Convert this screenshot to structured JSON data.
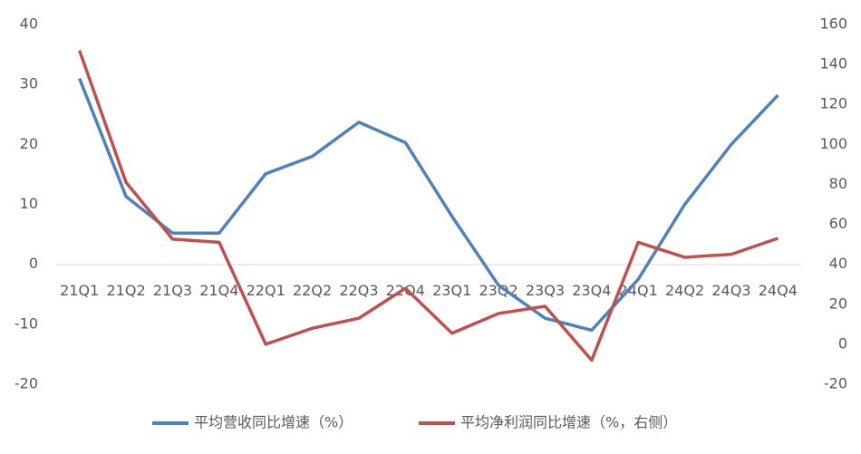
{
  "chart_data": {
    "type": "line",
    "categories": [
      "21Q1",
      "21Q2",
      "21Q3",
      "21Q4",
      "22Q1",
      "22Q2",
      "22Q3",
      "22Q4",
      "23Q1",
      "23Q2",
      "23Q3",
      "23Q4",
      "24Q1",
      "24Q2",
      "24Q3",
      "24Q4"
    ],
    "series": [
      {
        "name": "平均营收同比增速（%）",
        "color": "#4f81bd",
        "values": [
          31,
          11.3,
          5.2,
          5.2,
          15.1,
          18,
          23.7,
          20.3,
          8,
          -3.5,
          -9,
          -11,
          -2.5,
          10,
          20,
          28.2
        ]
      },
      {
        "name": "平均净利润同比增速（%，右侧）",
        "color": "#c0504d",
        "axis": "y2",
        "values": [
          147,
          81,
          52.6,
          51,
          0,
          8,
          13,
          28,
          5.5,
          15.4,
          19,
          -8,
          51,
          43.5,
          45,
          53
        ]
      }
    ],
    "ylim": [
      -20,
      40
    ],
    "yticks": [
      -20,
      -10,
      0,
      10,
      20,
      30,
      40
    ],
    "y2lim": [
      -20,
      160
    ],
    "y2ticks": [
      -20,
      0,
      20,
      40,
      60,
      80,
      100,
      120,
      140,
      160
    ],
    "grid": false,
    "legend": "bottom"
  }
}
